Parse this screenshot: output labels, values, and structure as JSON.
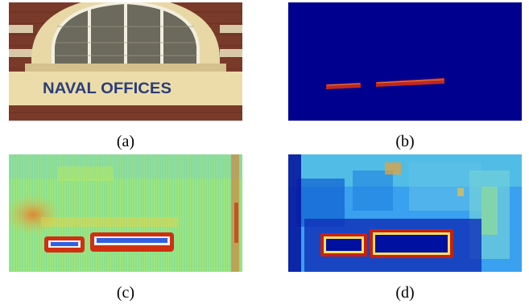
{
  "figure": {
    "panels": [
      {
        "id": "a",
        "caption": "(a)",
        "content": "photo of building facade with sign",
        "sign_text": "NAVAL OFFICES"
      },
      {
        "id": "b",
        "caption": "(b)",
        "content": "binary text mask"
      },
      {
        "id": "c",
        "caption": "(c)",
        "content": "response heat map"
      },
      {
        "id": "d",
        "caption": "(d)",
        "content": "response heat map"
      }
    ],
    "colors": {
      "mask_background": "#00008f",
      "mask_region": "#c0281e",
      "heat_low": "#0000b0",
      "heat_mid": "#7fe08c",
      "heat_high": "#c00000"
    }
  }
}
